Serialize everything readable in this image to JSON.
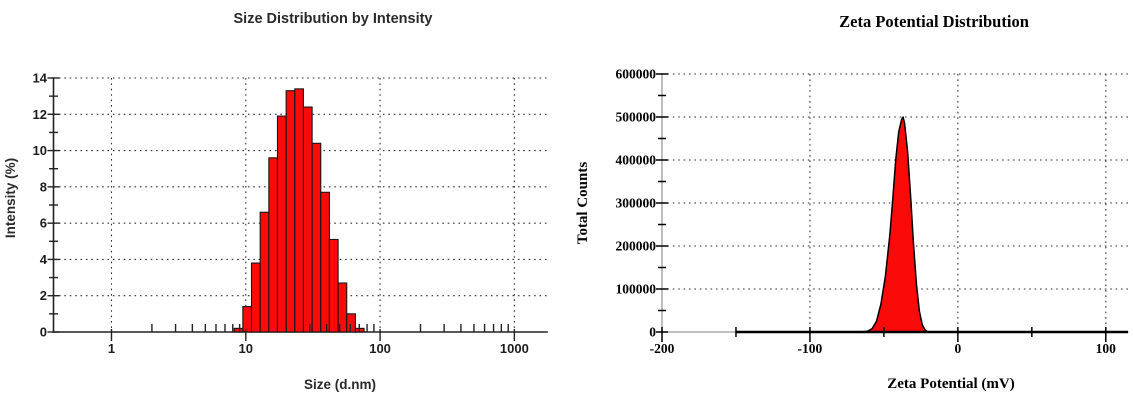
{
  "page": {
    "background": "#ffffff"
  },
  "chart_data": [
    {
      "id": "size-distribution",
      "type": "bar",
      "title": "Size Distribution by Intensity",
      "xlabel": "Size (d.nm)",
      "ylabel": "Intensity (%)",
      "x_scale": "log",
      "x_range": [
        0.37,
        1750
      ],
      "y_range": [
        0,
        14
      ],
      "x_tick_values": [
        1,
        10,
        100,
        1000
      ],
      "x_tick_labels": [
        "1",
        "10",
        "100",
        "1000"
      ],
      "y_tick_step": 2,
      "y_minor_step": 1,
      "y_tick_labels": [
        "0",
        "2",
        "4",
        "6",
        "8",
        "10",
        "12",
        "14"
      ],
      "grid": "dotted",
      "legend": "none",
      "bar_fill": "#fb0a0a",
      "bar_stroke": "#161616",
      "bin_edges_nm": [
        8.2,
        9.51,
        11.03,
        12.8,
        14.85,
        17.22,
        19.98,
        23.18,
        26.88,
        31.19,
        36.18,
        41.96,
        48.68,
        56.46,
        65.5,
        75.98
      ],
      "values_percent": [
        0.2,
        1.4,
        3.8,
        6.6,
        9.6,
        11.9,
        13.3,
        13.4,
        12.4,
        10.4,
        7.7,
        5.1,
        2.7,
        1.0,
        0.2
      ]
    },
    {
      "id": "zeta-potential",
      "type": "area",
      "title": "Zeta Potential Distribution",
      "xlabel": "Zeta Potential (mV)",
      "ylabel": "Total Counts",
      "x_scale": "linear",
      "x_range": [
        -200,
        115
      ],
      "y_range": [
        0,
        600000
      ],
      "x_tick_values": [
        -200,
        -100,
        0,
        100
      ],
      "x_tick_labels": [
        "-200",
        "-100",
        "0",
        "100"
      ],
      "x_minor_tick_values": [
        -150,
        -50,
        50
      ],
      "y_tick_step": 100000,
      "y_minor_step": 50000,
      "y_tick_labels": [
        "0",
        "100000",
        "200000",
        "300000",
        "400000",
        "500000",
        "600000"
      ],
      "grid": "dotted",
      "legend": "none",
      "area_fill": "#fb0a0a",
      "line_stroke": "#000000",
      "baseline_range_mV": [
        -150,
        115
      ],
      "apex": {
        "x_mV": -37,
        "y_counts": 500000
      },
      "series_mV_counts": [
        [
          -150,
          0
        ],
        [
          -65,
          0
        ],
        [
          -61,
          2000
        ],
        [
          -58,
          8000
        ],
        [
          -55,
          25000
        ],
        [
          -52,
          65000
        ],
        [
          -49,
          130000
        ],
        [
          -46,
          225000
        ],
        [
          -44,
          310000
        ],
        [
          -42,
          400000
        ],
        [
          -40,
          465000
        ],
        [
          -38,
          495000
        ],
        [
          -37,
          500000
        ],
        [
          -36,
          485000
        ],
        [
          -34,
          420000
        ],
        [
          -32,
          320000
        ],
        [
          -30,
          205000
        ],
        [
          -28,
          110000
        ],
        [
          -26,
          48000
        ],
        [
          -24,
          16000
        ],
        [
          -22,
          4000
        ],
        [
          -20,
          0
        ],
        [
          115,
          0
        ]
      ]
    }
  ]
}
